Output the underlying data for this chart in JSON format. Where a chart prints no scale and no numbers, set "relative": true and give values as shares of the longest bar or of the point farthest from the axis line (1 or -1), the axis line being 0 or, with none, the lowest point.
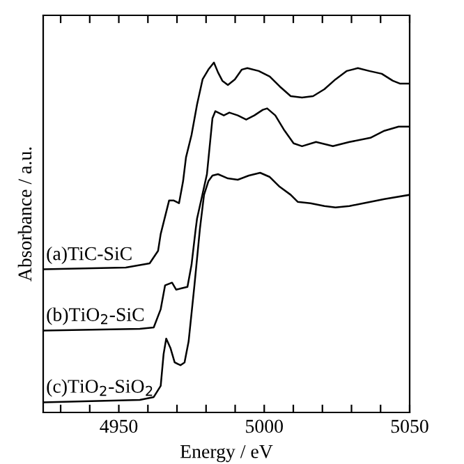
{
  "chart_data": {
    "type": "line",
    "relative": true,
    "xlabel": "Energy / eV",
    "ylabel": "Absorbance / a.u.",
    "xlim": [
      4924,
      5050
    ],
    "xticks": [
      {
        "value": 4930,
        "label": null
      },
      {
        "value": 4940,
        "label": null
      },
      4950,
      {
        "value": 4960,
        "label": null
      },
      {
        "value": 4970,
        "label": null
      },
      {
        "value": 4980,
        "label": null
      },
      {
        "value": 4990,
        "label": null
      },
      5000,
      {
        "value": 5010,
        "label": null
      },
      {
        "value": 5020,
        "label": null
      },
      {
        "value": 5030,
        "label": null
      },
      {
        "value": 5040,
        "label": null
      },
      5050
    ],
    "tick_labels": "x",
    "grid": false,
    "legend": false,
    "marker": "none",
    "line_style": "solid",
    "series": [
      {
        "name": "(a)TiC-SiC",
        "color": "#000000",
        "x": [
          4924.0,
          4952.4,
          4960.6,
          4963.5,
          4964.4,
          4967.3,
          4968.8,
          4970.7,
          4972.1,
          4973.1,
          4975.0,
          4976.9,
          4978.8,
          4980.8,
          4982.7,
          4984.1,
          4985.6,
          4987.5,
          4989.9,
          4992.3,
          4994.2,
          4998.1,
          5001.9,
          5005.3,
          5009.1,
          5013.0,
          5016.8,
          5020.7,
          5024.5,
          5028.4,
          5032.2,
          5036.1,
          5040.4,
          5044.2,
          5046.6,
          5050.0
        ],
        "values": [
          0.409,
          0.414,
          0.426,
          0.462,
          0.51,
          0.606,
          0.606,
          0.598,
          0.661,
          0.729,
          0.793,
          0.88,
          0.952,
          0.98,
          1.0,
          0.972,
          0.948,
          0.936,
          0.952,
          0.98,
          0.984,
          0.976,
          0.96,
          0.932,
          0.904,
          0.9,
          0.904,
          0.924,
          0.952,
          0.976,
          0.984,
          0.976,
          0.968,
          0.948,
          0.94,
          0.94
        ]
      },
      {
        "name": "(b)TiO$_{2}$-SiC",
        "color": "#000000",
        "x": [
          4924.0,
          4957.2,
          4962.0,
          4964.4,
          4965.9,
          4968.3,
          4969.7,
          4971.6,
          4973.6,
          4975.0,
          4976.4,
          4976.9,
          4978.4,
          4980.3,
          4982.2,
          4983.2,
          4986.1,
          4988.0,
          4990.9,
          4993.8,
          4996.6,
          4999.5,
          5001.0,
          5003.8,
          5006.7,
          5010.1,
          5013.0,
          5017.8,
          5023.6,
          5029.3,
          5036.5,
          5041.3,
          5046.2,
          5050.0
        ],
        "values": [
          0.234,
          0.239,
          0.243,
          0.295,
          0.363,
          0.371,
          0.351,
          0.355,
          0.359,
          0.422,
          0.522,
          0.554,
          0.61,
          0.681,
          0.841,
          0.861,
          0.849,
          0.857,
          0.849,
          0.837,
          0.849,
          0.865,
          0.869,
          0.849,
          0.809,
          0.769,
          0.761,
          0.773,
          0.761,
          0.773,
          0.785,
          0.805,
          0.817,
          0.817
        ]
      },
      {
        "name": "(c)TiO$_{2}$-SiO$_{2}$",
        "color": "#000000",
        "x": [
          4924.0,
          4957.2,
          4962.0,
          4964.4,
          4965.4,
          4966.3,
          4967.8,
          4969.2,
          4971.2,
          4972.6,
          4974.0,
          4976.0,
          4977.9,
          4979.3,
          4980.8,
          4982.2,
          4984.1,
          4987.5,
          4990.9,
          4994.7,
          4998.6,
          5001.9,
          5005.3,
          5009.1,
          5011.5,
          5015.9,
          5020.7,
          5024.5,
          5029.3,
          5034.1,
          5041.3,
          5050.0
        ],
        "values": [
          0.029,
          0.036,
          0.044,
          0.076,
          0.167,
          0.211,
          0.183,
          0.143,
          0.135,
          0.143,
          0.203,
          0.363,
          0.526,
          0.622,
          0.661,
          0.677,
          0.681,
          0.669,
          0.665,
          0.677,
          0.685,
          0.673,
          0.645,
          0.622,
          0.602,
          0.598,
          0.59,
          0.586,
          0.59,
          0.598,
          0.61,
          0.622
        ]
      }
    ]
  }
}
